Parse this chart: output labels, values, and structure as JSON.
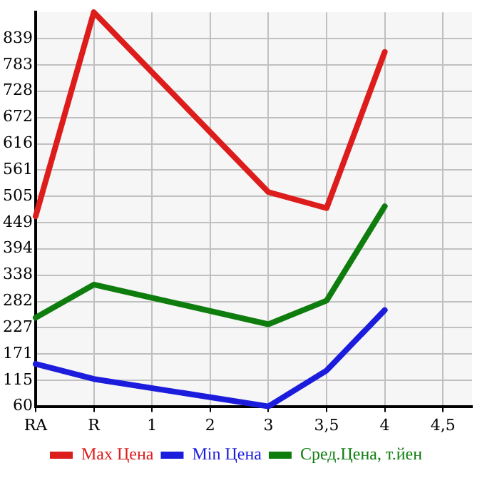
{
  "chart_data": {
    "type": "line",
    "categories": [
      "RA",
      "R",
      "1",
      "2",
      "3",
      "3,5",
      "4",
      "4,5"
    ],
    "series": [
      {
        "name": "Max Цена",
        "color": "#dd1c1c",
        "values": [
          463,
          895,
          null,
          null,
          514,
          480,
          811,
          null
        ]
      },
      {
        "name": "Min Цена",
        "color": "#1c1cdd",
        "values": [
          150,
          118,
          null,
          null,
          60,
          136,
          264,
          null
        ]
      },
      {
        "name": "Сред.Цена, т.йен",
        "color": "#0e7d0e",
        "values": [
          248,
          318,
          null,
          null,
          234,
          284,
          484,
          null
        ]
      }
    ],
    "ylim": [
      60,
      895
    ],
    "yticks": [
      60,
      115,
      171,
      227,
      282,
      338,
      394,
      449,
      505,
      561,
      616,
      672,
      728,
      783,
      839
    ],
    "grid": true,
    "legend": "bottom",
    "marker": "none",
    "line_style": "solid"
  }
}
